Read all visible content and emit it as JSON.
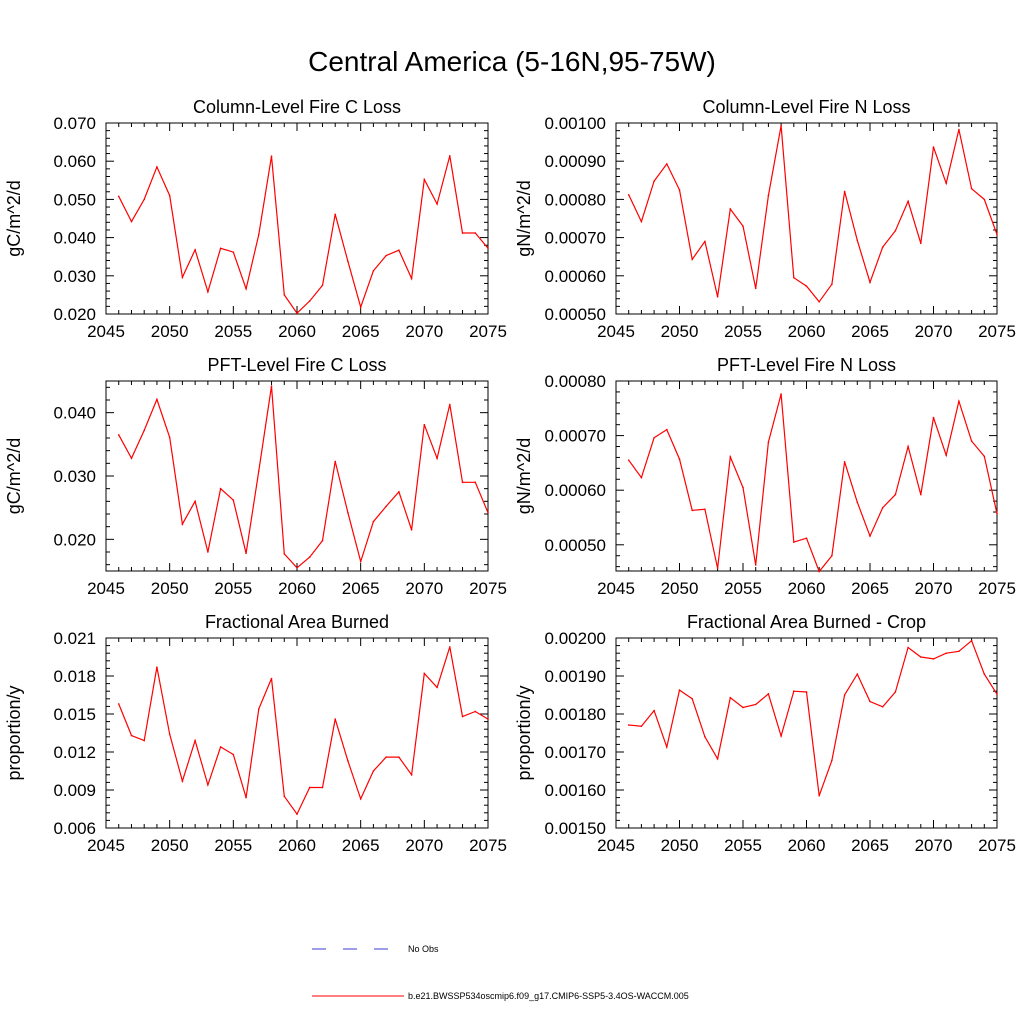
{
  "figure": {
    "title": "Central America (5-16N,95-75W)"
  },
  "legend": {
    "no_obs_label": "No Obs",
    "model_label": "b.e21.BWSSP534oscmip6.f09_g17.CMIP6-SSP5-3.4OS-WACCM.005",
    "no_obs_color": "#3b3bd0",
    "model_color": "#ff0000"
  },
  "chart_data": [
    {
      "type": "line",
      "title": "Column-Level Fire C Loss",
      "xlabel": "",
      "ylabel": "gC/m^2/d",
      "xlim": [
        2045,
        2075
      ],
      "ylim": [
        0.02,
        0.07
      ],
      "xticks": [
        2045,
        2050,
        2055,
        2060,
        2065,
        2070,
        2075
      ],
      "xtick_labels": [
        "2045",
        "2050",
        "2055",
        "2060",
        "2065",
        "2070",
        "2075"
      ],
      "yticks": [
        0.02,
        0.03,
        0.04,
        0.05,
        0.06,
        0.07
      ],
      "ytick_labels": [
        "0.020",
        "0.030",
        "0.040",
        "0.050",
        "0.060",
        "0.070"
      ],
      "series": [
        {
          "name": "b.e21.BWSSP534oscmip6.f09_g17.CMIP6-SSP5-3.4OS-WACCM.005",
          "x": [
            2046,
            2047,
            2048,
            2049,
            2050,
            2051,
            2052,
            2053,
            2054,
            2055,
            2056,
            2057,
            2058,
            2059,
            2060,
            2061,
            2062,
            2063,
            2064,
            2065,
            2066,
            2067,
            2068,
            2069,
            2070,
            2071,
            2072,
            2073,
            2074,
            2075
          ],
          "values": [
            0.0508,
            0.0442,
            0.05,
            0.0585,
            0.051,
            0.0296,
            0.0368,
            0.0258,
            0.0372,
            0.0362,
            0.0266,
            0.0408,
            0.0613,
            0.025,
            0.0202,
            0.0234,
            0.0275,
            0.0461,
            0.0338,
            0.0218,
            0.0313,
            0.0353,
            0.0367,
            0.0293,
            0.0552,
            0.0488,
            0.0614,
            0.0412,
            0.0412,
            0.0372
          ]
        }
      ]
    },
    {
      "type": "line",
      "title": "Column-Level Fire N Loss",
      "xlabel": "",
      "ylabel": "gN/m^2/d",
      "xlim": [
        2045,
        2075
      ],
      "ylim": [
        0.0005,
        0.001
      ],
      "xticks": [
        2045,
        2050,
        2055,
        2060,
        2065,
        2070,
        2075
      ],
      "xtick_labels": [
        "2045",
        "2050",
        "2055",
        "2060",
        "2065",
        "2070",
        "2075"
      ],
      "yticks": [
        0.0005,
        0.0006,
        0.0007,
        0.0008,
        0.0009,
        0.001
      ],
      "ytick_labels": [
        "0.00050",
        "0.00060",
        "0.00070",
        "0.00080",
        "0.00090",
        "0.00100"
      ],
      "series": [
        {
          "name": "b.e21.BWSSP534oscmip6.f09_g17.CMIP6-SSP5-3.4OS-WACCM.005",
          "x": [
            2046,
            2047,
            2048,
            2049,
            2050,
            2051,
            2052,
            2053,
            2054,
            2055,
            2056,
            2057,
            2058,
            2059,
            2060,
            2061,
            2062,
            2063,
            2064,
            2065,
            2066,
            2067,
            2068,
            2069,
            2070,
            2071,
            2072,
            2073,
            2074,
            2075
          ],
          "values": [
            0.000812,
            0.000742,
            0.000848,
            0.000893,
            0.000825,
            0.000643,
            0.00069,
            0.000545,
            0.000775,
            0.00073,
            0.000567,
            0.00081,
            0.000993,
            0.000595,
            0.000573,
            0.000532,
            0.000578,
            0.000821,
            0.000693,
            0.000583,
            0.000675,
            0.000718,
            0.000795,
            0.000685,
            0.000937,
            0.000842,
            0.000983,
            0.000828,
            0.0008,
            0.000708
          ]
        }
      ]
    },
    {
      "type": "line",
      "title": "PFT-Level Fire C Loss",
      "xlabel": "",
      "ylabel": "gC/m^2/d",
      "xlim": [
        2045,
        2075
      ],
      "ylim": [
        0.015,
        0.045
      ],
      "xticks": [
        2045,
        2050,
        2055,
        2060,
        2065,
        2070,
        2075
      ],
      "xtick_labels": [
        "2045",
        "2050",
        "2055",
        "2060",
        "2065",
        "2070",
        "2075"
      ],
      "yticks": [
        0.02,
        0.03,
        0.04
      ],
      "ytick_labels": [
        "0.020",
        "0.030",
        "0.040"
      ],
      "series": [
        {
          "name": "b.e21.BWSSP534oscmip6.f09_g17.CMIP6-SSP5-3.4OS-WACCM.005",
          "x": [
            2046,
            2047,
            2048,
            2049,
            2050,
            2051,
            2052,
            2053,
            2054,
            2055,
            2056,
            2057,
            2058,
            2059,
            2060,
            2061,
            2062,
            2063,
            2064,
            2065,
            2066,
            2067,
            2068,
            2069,
            2070,
            2071,
            2072,
            2073,
            2074,
            2075
          ],
          "values": [
            0.0365,
            0.0328,
            0.0372,
            0.0421,
            0.0361,
            0.0224,
            0.026,
            0.018,
            0.028,
            0.0262,
            0.0178,
            0.0308,
            0.0442,
            0.0177,
            0.0155,
            0.0172,
            0.0198,
            0.0323,
            0.0242,
            0.0165,
            0.0228,
            0.0252,
            0.0275,
            0.0215,
            0.0381,
            0.0328,
            0.0413,
            0.029,
            0.029,
            0.0242
          ]
        }
      ]
    },
    {
      "type": "line",
      "title": "PFT-Level Fire N Loss",
      "xlabel": "",
      "ylabel": "gN/m^2/d",
      "xlim": [
        2045,
        2075
      ],
      "ylim": [
        0.000452,
        0.0008
      ],
      "xticks": [
        2045,
        2050,
        2055,
        2060,
        2065,
        2070,
        2075
      ],
      "xtick_labels": [
        "2045",
        "2050",
        "2055",
        "2060",
        "2065",
        "2070",
        "2075"
      ],
      "yticks": [
        0.0005,
        0.0006,
        0.0007,
        0.0008
      ],
      "ytick_labels": [
        "0.00050",
        "0.00060",
        "0.00070",
        "0.00080"
      ],
      "series": [
        {
          "name": "b.e21.BWSSP534oscmip6.f09_g17.CMIP6-SSP5-3.4OS-WACCM.005",
          "x": [
            2046,
            2047,
            2048,
            2049,
            2050,
            2051,
            2052,
            2053,
            2054,
            2055,
            2056,
            2057,
            2058,
            2059,
            2060,
            2061,
            2062,
            2063,
            2064,
            2065,
            2066,
            2067,
            2068,
            2069,
            2070,
            2071,
            2072,
            2073,
            2074,
            2075
          ],
          "values": [
            0.000655,
            0.000623,
            0.000696,
            0.000711,
            0.000657,
            0.000563,
            0.000565,
            0.000457,
            0.000661,
            0.000605,
            0.000463,
            0.000688,
            0.000776,
            0.000505,
            0.000512,
            0.000451,
            0.00048,
            0.000652,
            0.000578,
            0.000516,
            0.000568,
            0.000592,
            0.00068,
            0.000592,
            0.000733,
            0.000664,
            0.000763,
            0.00069,
            0.000662,
            0.000557
          ]
        }
      ]
    },
    {
      "type": "line",
      "title": "Fractional Area Burned",
      "xlabel": "",
      "ylabel": "proportion/y",
      "xlim": [
        2045,
        2075
      ],
      "ylim": [
        0.006,
        0.021
      ],
      "xticks": [
        2045,
        2050,
        2055,
        2060,
        2065,
        2070,
        2075
      ],
      "xtick_labels": [
        "2045",
        "2050",
        "2055",
        "2060",
        "2065",
        "2070",
        "2075"
      ],
      "yticks": [
        0.006,
        0.009,
        0.012,
        0.015,
        0.018,
        0.021
      ],
      "ytick_labels": [
        "0.006",
        "0.009",
        "0.012",
        "0.015",
        "0.018",
        "0.021"
      ],
      "series": [
        {
          "name": "b.e21.BWSSP534oscmip6.f09_g17.CMIP6-SSP5-3.4OS-WACCM.005",
          "x": [
            2046,
            2047,
            2048,
            2049,
            2050,
            2051,
            2052,
            2053,
            2054,
            2055,
            2056,
            2057,
            2058,
            2059,
            2060,
            2061,
            2062,
            2063,
            2064,
            2065,
            2066,
            2067,
            2068,
            2069,
            2070,
            2071,
            2072,
            2073,
            2074,
            2075
          ],
          "values": [
            0.0158,
            0.0133,
            0.0129,
            0.0187,
            0.0134,
            0.0097,
            0.0129,
            0.0094,
            0.0124,
            0.0118,
            0.0084,
            0.0154,
            0.0178,
            0.0085,
            0.0071,
            0.0092,
            0.0092,
            0.0146,
            0.0113,
            0.0083,
            0.0105,
            0.0116,
            0.0116,
            0.0102,
            0.0182,
            0.0171,
            0.0203,
            0.0148,
            0.0152,
            0.0146
          ]
        }
      ]
    },
    {
      "type": "line",
      "title": "Fractional Area Burned - Crop",
      "xlabel": "",
      "ylabel": "proportion/y",
      "xlim": [
        2045,
        2075
      ],
      "ylim": [
        0.0015,
        0.002
      ],
      "xticks": [
        2045,
        2050,
        2055,
        2060,
        2065,
        2070,
        2075
      ],
      "xtick_labels": [
        "2045",
        "2050",
        "2055",
        "2060",
        "2065",
        "2070",
        "2075"
      ],
      "yticks": [
        0.0015,
        0.0016,
        0.0017,
        0.0018,
        0.0019,
        0.002
      ],
      "ytick_labels": [
        "0.00150",
        "0.00160",
        "0.00170",
        "0.00180",
        "0.00190",
        "0.00200"
      ],
      "series": [
        {
          "name": "b.e21.BWSSP534oscmip6.f09_g17.CMIP6-SSP5-3.4OS-WACCM.005",
          "x": [
            2046,
            2047,
            2048,
            2049,
            2050,
            2051,
            2052,
            2053,
            2054,
            2055,
            2056,
            2057,
            2058,
            2059,
            2060,
            2061,
            2062,
            2063,
            2064,
            2065,
            2066,
            2067,
            2068,
            2069,
            2070,
            2071,
            2072,
            2073,
            2074,
            2075
          ],
          "values": [
            0.001771,
            0.001768,
            0.001809,
            0.001713,
            0.001863,
            0.00184,
            0.00174,
            0.001682,
            0.001843,
            0.001817,
            0.001825,
            0.001853,
            0.001742,
            0.00186,
            0.001858,
            0.001585,
            0.001678,
            0.00185,
            0.001905,
            0.001833,
            0.001819,
            0.001858,
            0.001975,
            0.00195,
            0.001945,
            0.00196,
            0.001965,
            0.001993,
            0.001905,
            0.001852
          ]
        }
      ]
    }
  ]
}
